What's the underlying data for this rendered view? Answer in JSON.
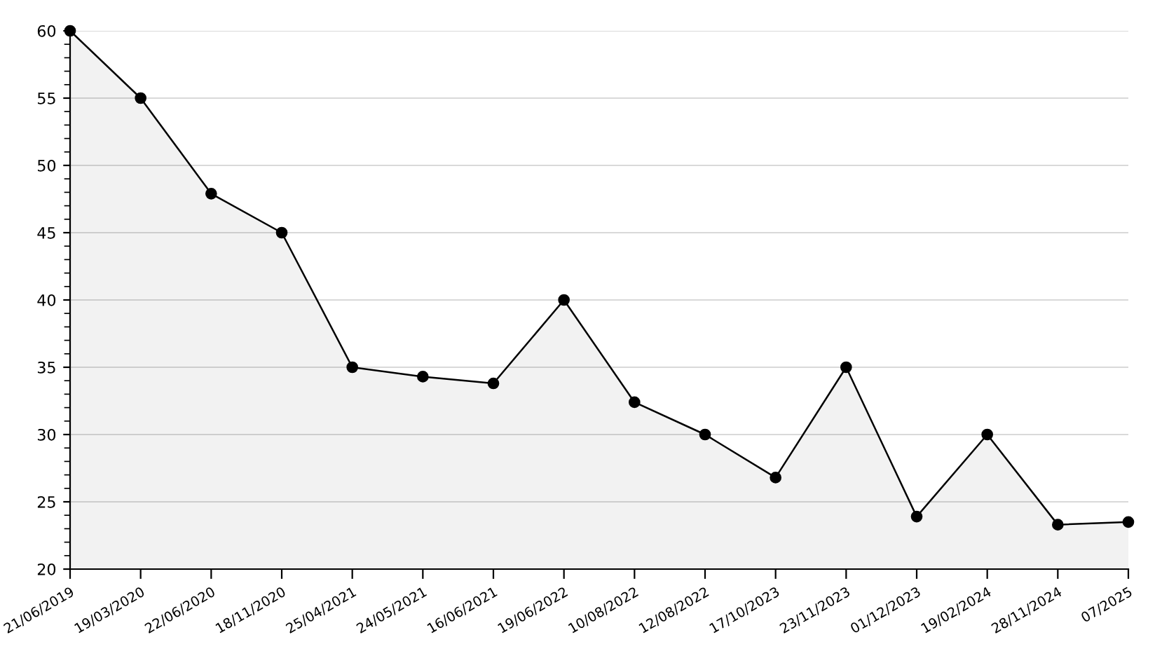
{
  "chart_data": {
    "type": "area",
    "categories": [
      "21/06/2019",
      "19/03/2020",
      "22/06/2020",
      "18/11/2020",
      "25/04/2021",
      "24/05/2021",
      "16/06/2021",
      "19/06/2022",
      "10/08/2022",
      "12/08/2022",
      "17/10/2023",
      "23/11/2023",
      "01/12/2023",
      "19/02/2024",
      "28/11/2024",
      "07/2025"
    ],
    "series": [
      {
        "color": "#000000",
        "values": [
          60,
          55,
          47.9,
          45,
          35,
          34.3,
          33.8,
          40,
          32.4,
          30,
          26.8,
          35,
          23.9,
          30,
          23.3,
          23.5
        ]
      }
    ],
    "ylim": [
      20,
      60
    ],
    "yticks": [
      20,
      25,
      30,
      35,
      40,
      45,
      50,
      55,
      60
    ],
    "grid": "y",
    "marker": "circle",
    "line_style": "solid"
  }
}
